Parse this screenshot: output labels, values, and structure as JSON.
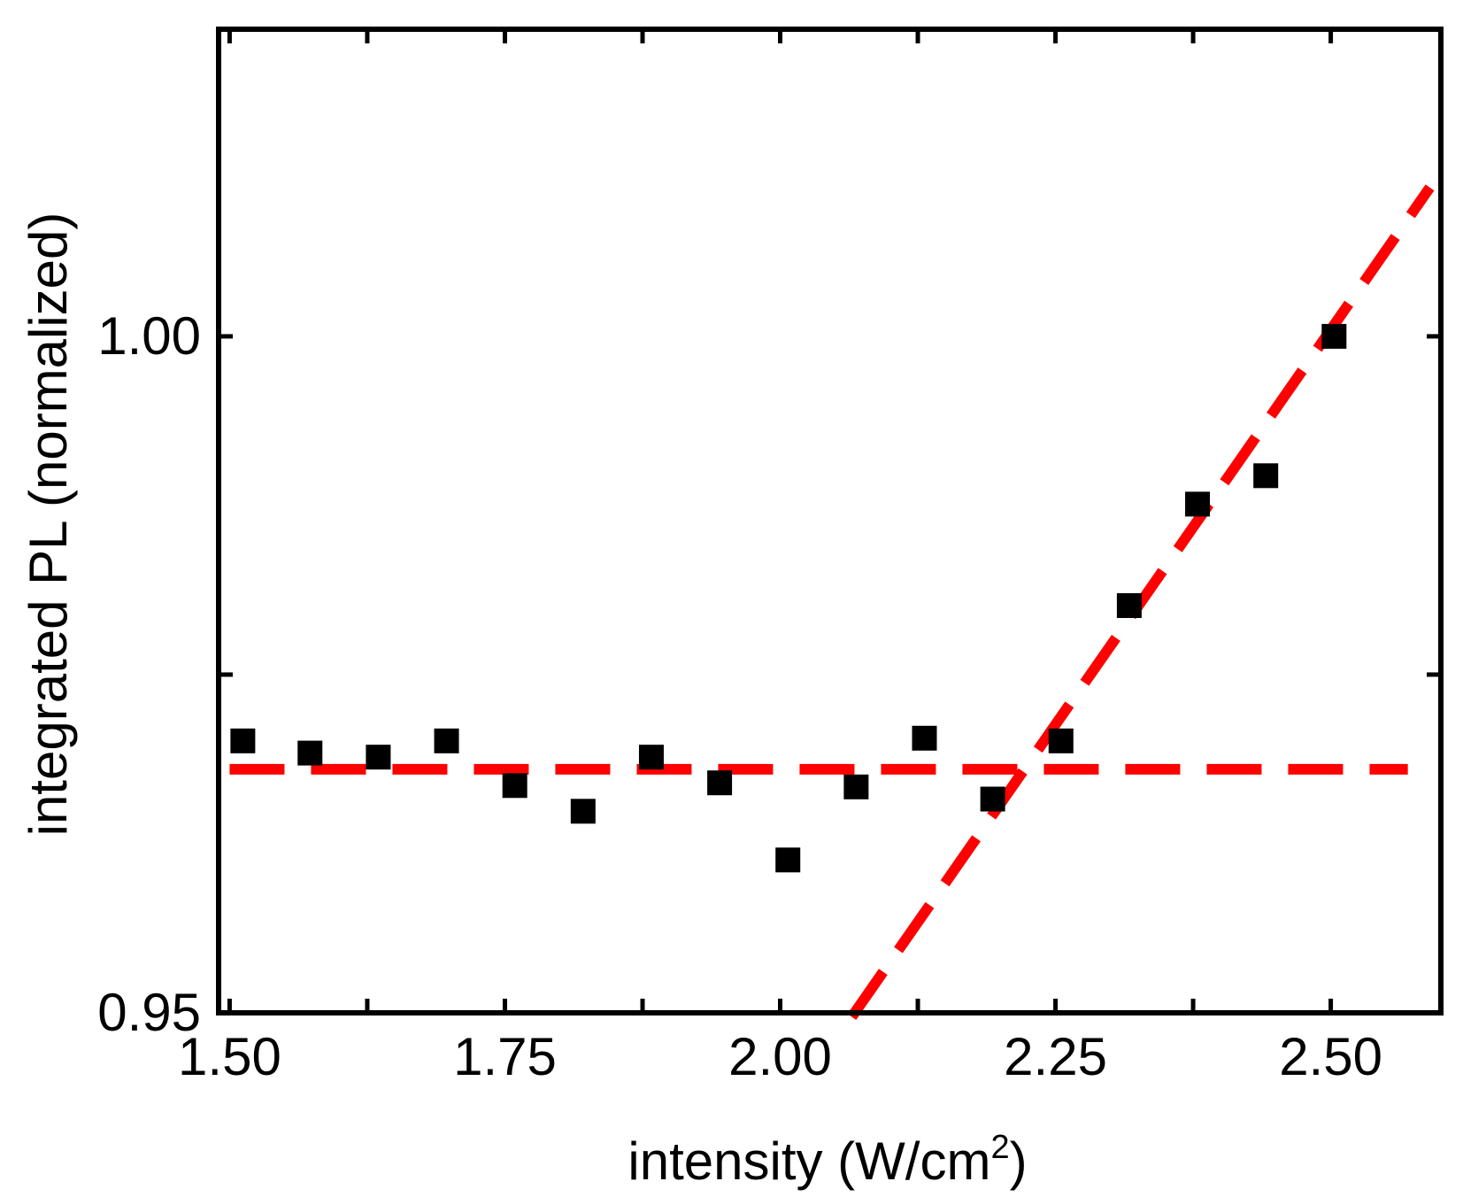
{
  "chart_data": {
    "type": "scatter",
    "xlabel": "intensity (W/cm",
    "xlabel_superscript": "2",
    "xlabel_suffix": ")",
    "ylabel": "integrated PL (normalized)",
    "xlim": [
      1.49,
      2.6
    ],
    "ylim": [
      0.95,
      1.0227
    ],
    "x_ticks": [
      1.5,
      1.75,
      2.0,
      2.25,
      2.5
    ],
    "x_tick_labels": [
      "1.50",
      "1.75",
      "2.00",
      "2.25",
      "2.50"
    ],
    "x_minor_ticks": [
      1.625,
      1.875,
      2.125,
      2.375
    ],
    "y_ticks": [
      0.95,
      1.0
    ],
    "y_tick_labels": [
      "0.95",
      "1.00"
    ],
    "y_minor_ticks": [
      0.975
    ],
    "grid": false,
    "series": [
      {
        "marker": "square",
        "color": "#000000",
        "x": [
          1.512,
          1.573,
          1.635,
          1.697,
          1.759,
          1.821,
          1.883,
          1.945,
          2.007,
          2.069,
          2.131,
          2.193,
          2.255,
          2.317,
          2.379,
          2.441,
          2.503
        ],
        "y": [
          0.9701,
          0.9692,
          0.9689,
          0.9701,
          0.9668,
          0.9649,
          0.9689,
          0.967,
          0.9613,
          0.9667,
          0.9703,
          0.9658,
          0.9701,
          0.9801,
          0.9876,
          0.9897,
          1.0
        ]
      }
    ],
    "fit_lines": [
      {
        "color": "#ff0000",
        "style": "dashed",
        "x": [
          1.5,
          2.57
        ],
        "y": [
          0.968,
          0.968
        ]
      },
      {
        "color": "#ff0000",
        "style": "dashed",
        "x": [
          2.065,
          2.59
        ],
        "y": [
          0.9497,
          1.011
        ]
      }
    ]
  }
}
